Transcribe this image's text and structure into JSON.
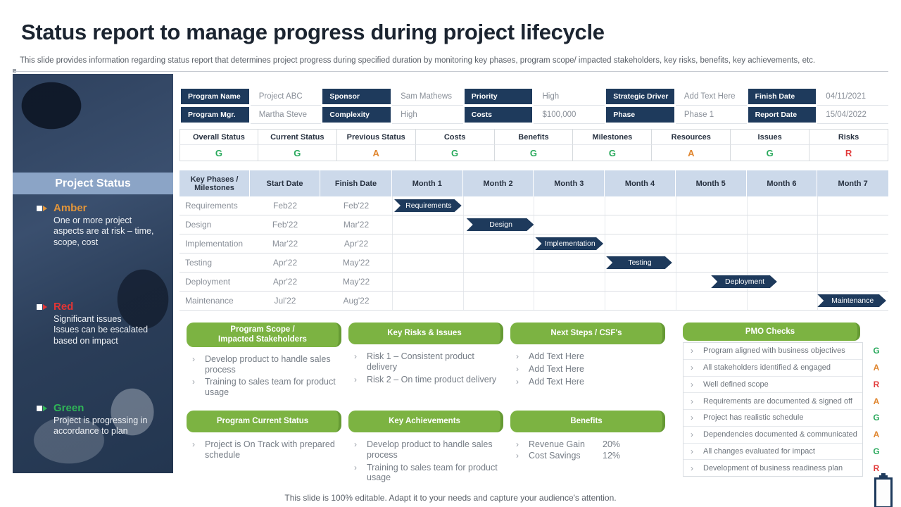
{
  "title": "Status report to manage progress during project lifecycle",
  "subtitle": "This slide provides information regarding status report that determines project progress during specified duration by monitoring key phases, program scope/ impacted stakeholders, key risks, benefits, key achievements, etc.",
  "footer": "This slide is 100% editable. Adapt it to your needs and capture your audience's attention.",
  "colors": {
    "navy": "#1e3a5c",
    "green_box": "#7cb342",
    "band_blue": "#8ba4c6",
    "gantt_header_blue": "#ccd9ea",
    "status_g": "#29a95c",
    "status_a": "#e0862f",
    "status_r": "#e23b3b"
  },
  "sidebar": {
    "title": "Project Status",
    "legend": [
      {
        "label": "Amber",
        "color": "#e2953a",
        "lines": [
          "One or more project aspects are at risk – time, scope, cost"
        ]
      },
      {
        "label": "Red",
        "color": "#e23535",
        "lines": [
          "Significant issues",
          "Issues can be escalated based on impact"
        ]
      },
      {
        "label": "Green",
        "color": "#2fb457",
        "lines": [
          "Project is progressing in accordance to plan"
        ]
      }
    ]
  },
  "info_table": {
    "rows": [
      [
        {
          "label": "Program Name",
          "value": "Project ABC"
        },
        {
          "label": "Sponsor",
          "value": "Sam Mathews"
        },
        {
          "label": "Priority",
          "value": "High"
        },
        {
          "label": "Strategic Driver",
          "value": "Add Text Here"
        },
        {
          "label": "Finish Date",
          "value": "04/11/2021"
        }
      ],
      [
        {
          "label": "Program Mgr.",
          "value": "Martha Steve"
        },
        {
          "label": "Complexity",
          "value": "High"
        },
        {
          "label": "Costs",
          "value": "$100,000"
        },
        {
          "label": "Phase",
          "value": "Phase 1"
        },
        {
          "label": "Report Date",
          "value": "15/04/2022"
        }
      ]
    ]
  },
  "status_strip": {
    "columns": [
      "Overall Status",
      "Current Status",
      "Previous Status",
      "Costs",
      "Benefits",
      "Milestones",
      "Resources",
      "Issues",
      "Risks"
    ],
    "values": [
      "G",
      "G",
      "A",
      "G",
      "G",
      "G",
      "A",
      "G",
      "R"
    ]
  },
  "gantt": {
    "columns": [
      "Key Phases / Milestones",
      "Start Date",
      "Finish Date"
    ],
    "months": [
      "Month 1",
      "Month 2",
      "Month 3",
      "Month 4",
      "Month 5",
      "Month 6",
      "Month 7"
    ],
    "rows": [
      {
        "phase": "Requirements",
        "start": "Feb22",
        "finish": "Feb'22",
        "bar_label": "Requirements",
        "bar_from": 0.03,
        "bar_to": 0.98
      },
      {
        "phase": "Design",
        "start": "Feb'22",
        "finish": "Mar'22",
        "bar_label": "Design",
        "bar_from": 1.05,
        "bar_to": 2.0
      },
      {
        "phase": "Implementation",
        "start": "Mar'22",
        "finish": "Apr'22",
        "bar_label": "Implementation",
        "bar_from": 2.02,
        "bar_to": 2.98
      },
      {
        "phase": "Testing",
        "start": "Apr'22",
        "finish": "May'22",
        "bar_label": "Testing",
        "bar_from": 3.02,
        "bar_to": 3.95
      },
      {
        "phase": "Deployment",
        "start": "Apr'22",
        "finish": "May'22",
        "bar_label": "Deployment",
        "bar_from": 4.5,
        "bar_to": 5.43
      },
      {
        "phase": "Maintenance",
        "start": "Jul'22",
        "finish": "Aug'22",
        "bar_label": "Maintenance",
        "bar_from": 6.0,
        "bar_to": 6.97
      }
    ]
  },
  "panels": {
    "row1": [
      {
        "id": "program-scope",
        "title_lines": [
          "Program Scope /",
          "Impacted Stakeholders"
        ],
        "bullets": [
          "Develop product to handle sales process",
          "Training to sales team for product usage"
        ]
      },
      {
        "id": "key-risks-issues",
        "title_lines": [
          "Key Risks & Issues"
        ],
        "bullets": [
          "Risk 1 – Consistent product delivery",
          "Risk 2 – On time product delivery"
        ]
      },
      {
        "id": "next-steps-csfs",
        "title_lines": [
          "Next Steps / CSF's"
        ],
        "bullets": [
          "Add Text Here",
          "Add Text Here",
          "Add Text Here"
        ]
      }
    ],
    "row2": [
      {
        "id": "program-current-status",
        "title_lines": [
          "Program Current Status"
        ],
        "bullets": [
          "Project is On Track with prepared schedule"
        ]
      },
      {
        "id": "key-achievements",
        "title_lines": [
          "Key Achievements"
        ],
        "bullets": [
          "Develop product to handle sales process",
          "Training to sales team for product usage"
        ]
      },
      {
        "id": "benefits",
        "title_lines": [
          "Benefits"
        ],
        "pairs": [
          {
            "label": "Revenue Gain",
            "value": "20%"
          },
          {
            "label": "Cost Savings",
            "value": "12%"
          }
        ]
      }
    ],
    "pmo": {
      "title": "PMO Checks",
      "items": [
        {
          "text": "Program aligned with business objectives",
          "status": "G"
        },
        {
          "text": "All stakeholders identified & engaged",
          "status": "A"
        },
        {
          "text": "Well defined scope",
          "status": "R"
        },
        {
          "text": "Requirements are documented & signed off",
          "status": "A"
        },
        {
          "text": "Project has realistic schedule",
          "status": "G"
        },
        {
          "text": "Dependencies documented & communicated",
          "status": "A"
        },
        {
          "text": "All changes evaluated for impact",
          "status": "G"
        },
        {
          "text": "Development of business readiness plan",
          "status": "R"
        }
      ]
    }
  }
}
